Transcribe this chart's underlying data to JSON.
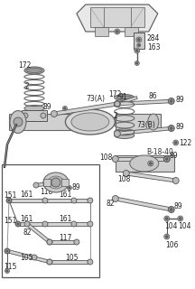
{
  "bg_color": "#ffffff",
  "line_color": "#666666",
  "dark_color": "#333333",
  "title": "B-18-40",
  "fig_width": 2.16,
  "fig_height": 3.2,
  "dpi": 100
}
